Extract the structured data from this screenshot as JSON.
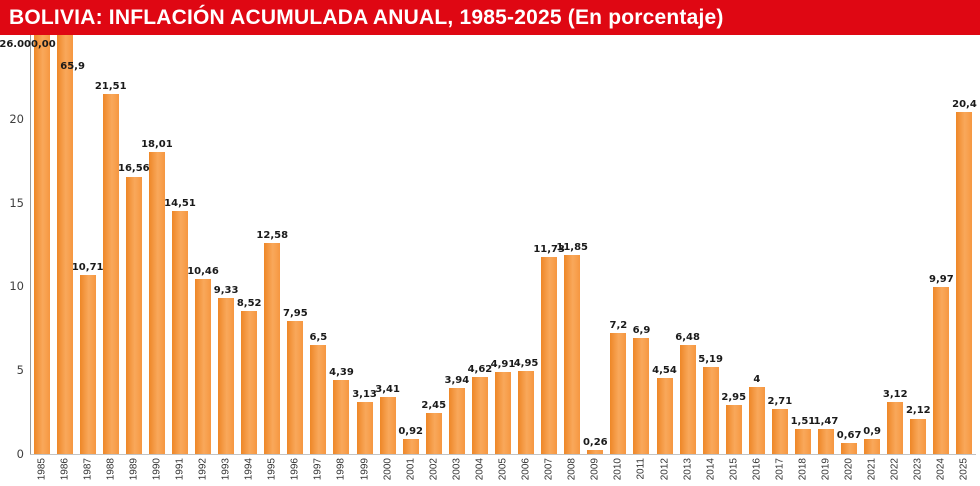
{
  "title": "BOLIVIA: INFLACIÓN ACUMULADA ANUAL, 1985-2025 (En porcentaje)",
  "colors": {
    "banner_red": "#df0713",
    "bar_gradient_left": "#ee8727",
    "bar_gradient_mid": "#f9a85b",
    "bar_gradient_right": "#f69740",
    "title_text": "#ffffff",
    "label_text": "#1a1a1a",
    "axis_text": "#3f3f3f"
  },
  "chart_data": {
    "type": "bar",
    "title": "BOLIVIA: INFLACIÓN ACUMULADA ANUAL, 1985-2025 (En porcentaje)",
    "xlabel": "",
    "ylabel": "",
    "ylim": [
      0,
      25
    ],
    "yticks": [
      0,
      5,
      10,
      15,
      20
    ],
    "grid": false,
    "legend": "none",
    "categories": [
      "1985",
      "1986",
      "1987",
      "1988",
      "1989",
      "1990",
      "1991",
      "1992",
      "1993",
      "1994",
      "1995",
      "1996",
      "1997",
      "1998",
      "1999",
      "2000",
      "2001",
      "2002",
      "2003",
      "2004",
      "2005",
      "2006",
      "2007",
      "2008",
      "2009",
      "2010",
      "2011",
      "2012",
      "2013",
      "2014",
      "2015",
      "2016",
      "2017",
      "2018",
      "2019",
      "2020",
      "2021",
      "2022",
      "2023",
      "2024",
      "2025"
    ],
    "values": [
      26000.0,
      65.9,
      10.71,
      21.51,
      16.56,
      18.01,
      14.51,
      10.46,
      9.33,
      8.52,
      12.58,
      7.95,
      6.5,
      4.39,
      3.13,
      3.41,
      0.92,
      2.45,
      3.94,
      4.62,
      4.91,
      4.95,
      11.73,
      11.85,
      0.26,
      7.2,
      6.9,
      4.54,
      6.48,
      5.19,
      2.95,
      4,
      2.71,
      1.51,
      1.47,
      0.67,
      0.9,
      3.12,
      2.12,
      9.97,
      20.4
    ],
    "labels": [
      "26.000,00",
      "65,9",
      "10,71",
      "21,51",
      "16,56",
      "18,01",
      "14,51",
      "10,46",
      "9,33",
      "8,52",
      "12,58",
      "7,95",
      "6,5",
      "4,39",
      "3,13",
      "3,41",
      "0,92",
      "2,45",
      "3,94",
      "4,62",
      "4,91",
      "4,95",
      "11,73",
      "11,85",
      "0,26",
      "7,2",
      "6,9",
      "4,54",
      "6,48",
      "5,19",
      "2,95",
      "4",
      "2,71",
      "1,51",
      "1,47",
      "0,67",
      "0,9",
      "3,12",
      "2,12",
      "9,97",
      "20,4"
    ],
    "clipped_label_offsets": {
      "0": {
        "dx": -14,
        "dy": 4
      },
      "1": {
        "dx": 8,
        "dy": 26
      }
    }
  }
}
